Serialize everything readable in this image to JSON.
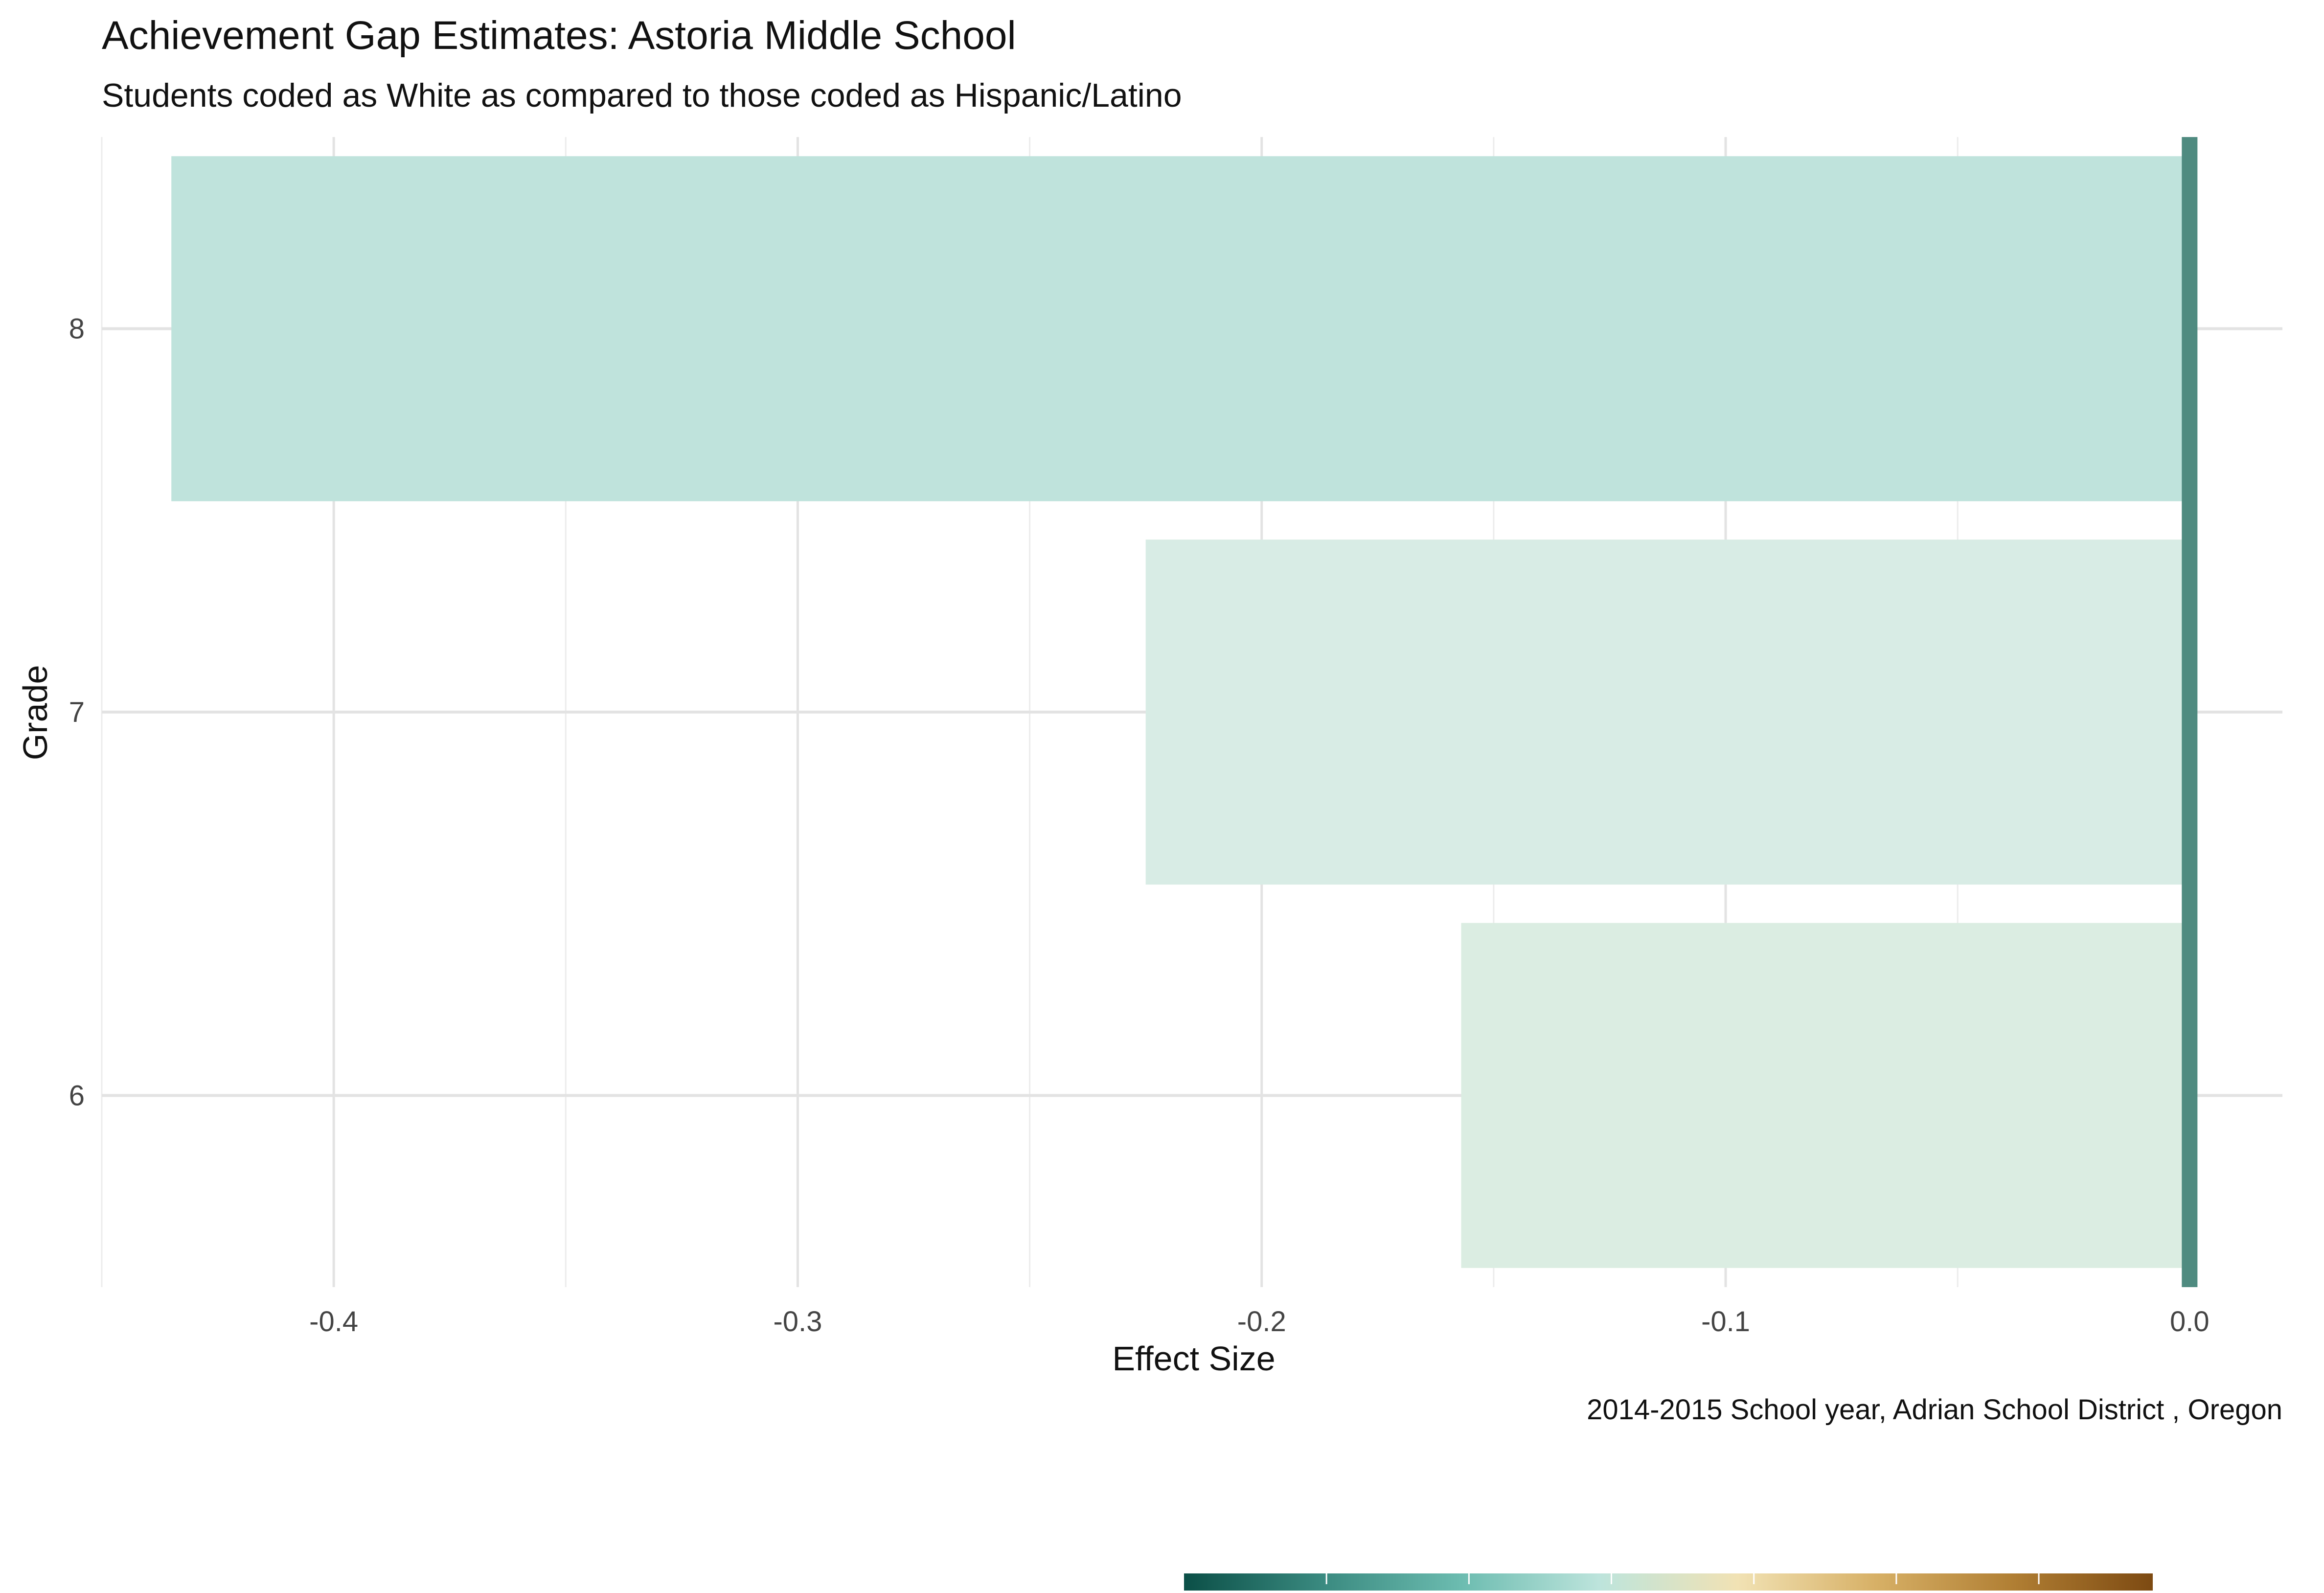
{
  "chart_data": {
    "type": "bar",
    "orientation": "horizontal",
    "title": "Achievement Gap Estimates: Astoria Middle School",
    "subtitle": "Students coded as White as compared to those coded as Hispanic/Latino",
    "xlabel": "Effect Size",
    "ylabel": "Grade",
    "caption": "2014-2015 School year,  Adrian School District , Oregon",
    "categories": [
      "6",
      "7",
      "8"
    ],
    "values": [
      -0.157,
      -0.225,
      -0.435
    ],
    "bar_colors": [
      "#dbede2",
      "#d8ece5",
      "#bfe3dc"
    ],
    "xlim": [
      -0.45,
      0.02
    ],
    "x_ticks": [
      -0.4,
      -0.3,
      -0.2,
      -0.1,
      0.0
    ],
    "x_tick_labels": [
      "-0.4",
      "-0.3",
      "-0.2",
      "-0.1",
      "0.0"
    ],
    "reference_line": {
      "x": 0.0,
      "color": "#4f8b80"
    },
    "grid": true,
    "legend": {
      "type": "colorbar",
      "placement": "bottom",
      "colors": [
        "#0b4f47",
        "#3a8a80",
        "#6cbcb0",
        "#bde4dc",
        "#f1e2b4",
        "#d7b066",
        "#b07e33",
        "#7d4a12"
      ]
    }
  }
}
